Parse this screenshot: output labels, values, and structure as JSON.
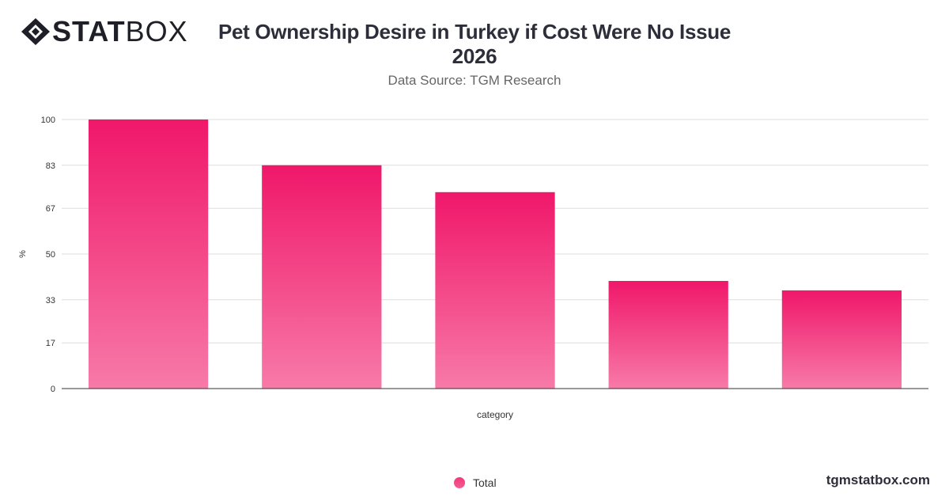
{
  "brand": {
    "logo_bold": "STAT",
    "logo_light": "BOX",
    "footer": "tgmstatbox.com"
  },
  "header": {
    "title_line1": "Pet Ownership Desire in Turkey if Cost Were No Issue",
    "title_line2": "2026",
    "subtitle": "Data Source: TGM Research"
  },
  "colors": {
    "bar_top": "#f0176a",
    "bar_bottom": "#f77aa8",
    "grid": "#dddddd",
    "axis": "#333333"
  },
  "chart_data": {
    "type": "bar",
    "categories": [
      "",
      "",
      "",
      "",
      ""
    ],
    "series": [
      {
        "name": "Total",
        "values": [
          100,
          83,
          73,
          40,
          36.5
        ]
      }
    ],
    "xlabel": "category",
    "ylabel": "%",
    "yticks": [
      0,
      17,
      33,
      50,
      67,
      83,
      100
    ],
    "ylim": [
      0,
      100
    ],
    "grid": true,
    "legend_position": "bottom"
  }
}
